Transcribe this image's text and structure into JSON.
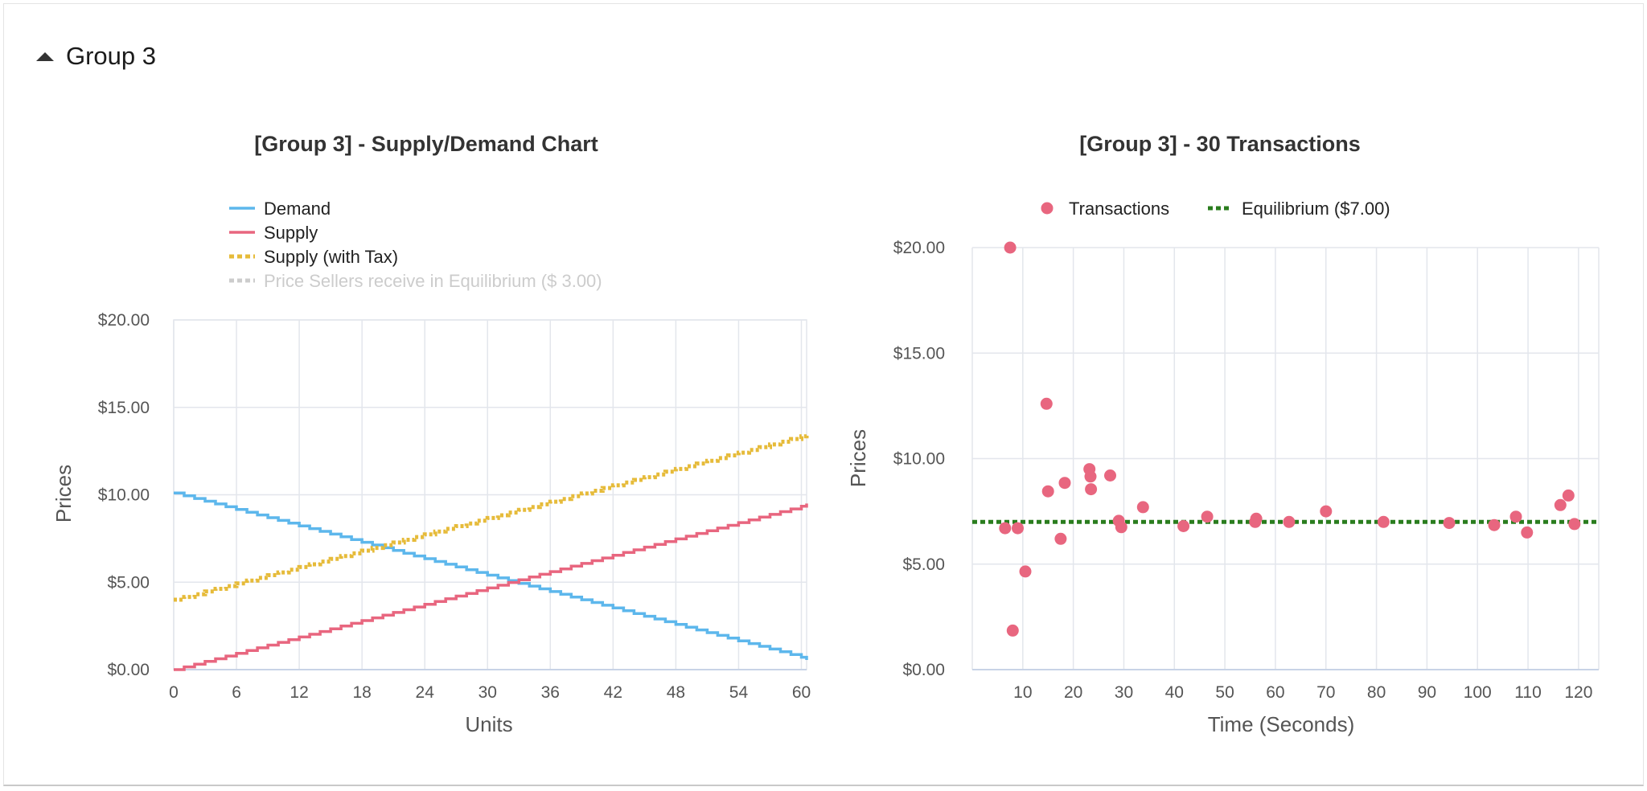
{
  "group": {
    "title": "Group 3"
  },
  "colors": {
    "demand": "#5db7ec",
    "supply": "#e8667f",
    "supply_tax": "#e6bb3a",
    "seller_eq": "#cccccc",
    "transactions": "#e8667f",
    "equilibrium": "#2a7d1e",
    "grid": "#e3e6ec",
    "axis_text": "#555555"
  },
  "chart_data": [
    {
      "type": "line",
      "title": "[Group 3] - Supply/Demand Chart",
      "xlabel": "Units",
      "ylabel": "Prices",
      "xlim": [
        0,
        60.5
      ],
      "ylim": [
        0,
        20
      ],
      "x_ticks": [
        "0",
        "6",
        "12",
        "18",
        "24",
        "30",
        "36",
        "42",
        "48",
        "54",
        "60"
      ],
      "y_ticks": [
        "$0.00",
        "$5.00",
        "$10.00",
        "$15.00",
        "$20.00"
      ],
      "grid": true,
      "legend_position": "top-left",
      "series": [
        {
          "name": "Demand",
          "style": "step",
          "x": [
            0,
            60.5
          ],
          "values": [
            10.1,
            0.55
          ]
        },
        {
          "name": "Supply",
          "style": "step",
          "x": [
            0,
            60.5
          ],
          "values": [
            0.0,
            9.5
          ]
        },
        {
          "name": "Supply (with Tax)",
          "style": "dotted-step",
          "x": [
            0,
            60.5
          ],
          "values": [
            4.0,
            13.5
          ]
        },
        {
          "name": "Price Sellers receive in Equilibrium ($ 3.00)",
          "style": "dotted",
          "hidden": true,
          "x": [],
          "values": []
        }
      ]
    },
    {
      "type": "scatter",
      "title": "[Group 3] - 30 Transactions",
      "xlabel": "Time (Seconds)",
      "ylabel": "Prices",
      "xlim": [
        0,
        124
      ],
      "ylim": [
        0,
        20
      ],
      "x_ticks": [
        "10",
        "20",
        "30",
        "40",
        "50",
        "60",
        "70",
        "80",
        "90",
        "100",
        "110",
        "120"
      ],
      "y_ticks": [
        "$0.00",
        "$5.00",
        "$10.00",
        "$15.00",
        "$20.00"
      ],
      "grid": true,
      "legend_position": "top-center",
      "series": [
        {
          "name": "Transactions",
          "x": [
            6.5,
            7.5,
            8.0,
            9.0,
            10.5,
            14.7,
            15.0,
            17.5,
            18.3,
            23.2,
            23.4,
            23.5,
            27.3,
            29.0,
            29.5,
            33.8,
            41.8,
            46.5,
            56.0,
            56.2,
            62.7,
            70.0,
            81.4,
            94.4,
            103.3,
            107.6,
            109.8,
            116.4,
            118.0,
            119.2
          ],
          "values": [
            6.7,
            20.0,
            1.85,
            6.7,
            4.65,
            12.6,
            8.45,
            6.2,
            8.85,
            9.5,
            9.15,
            8.55,
            9.2,
            7.05,
            6.75,
            7.7,
            6.8,
            7.25,
            7.0,
            7.15,
            7.0,
            7.5,
            7.0,
            6.95,
            6.85,
            7.25,
            6.5,
            7.8,
            8.25,
            6.9
          ]
        },
        {
          "name": "Equilibrium ($7.00)",
          "style": "dotted",
          "x": [
            0,
            124
          ],
          "values": [
            7.0,
            7.0
          ]
        }
      ]
    }
  ]
}
